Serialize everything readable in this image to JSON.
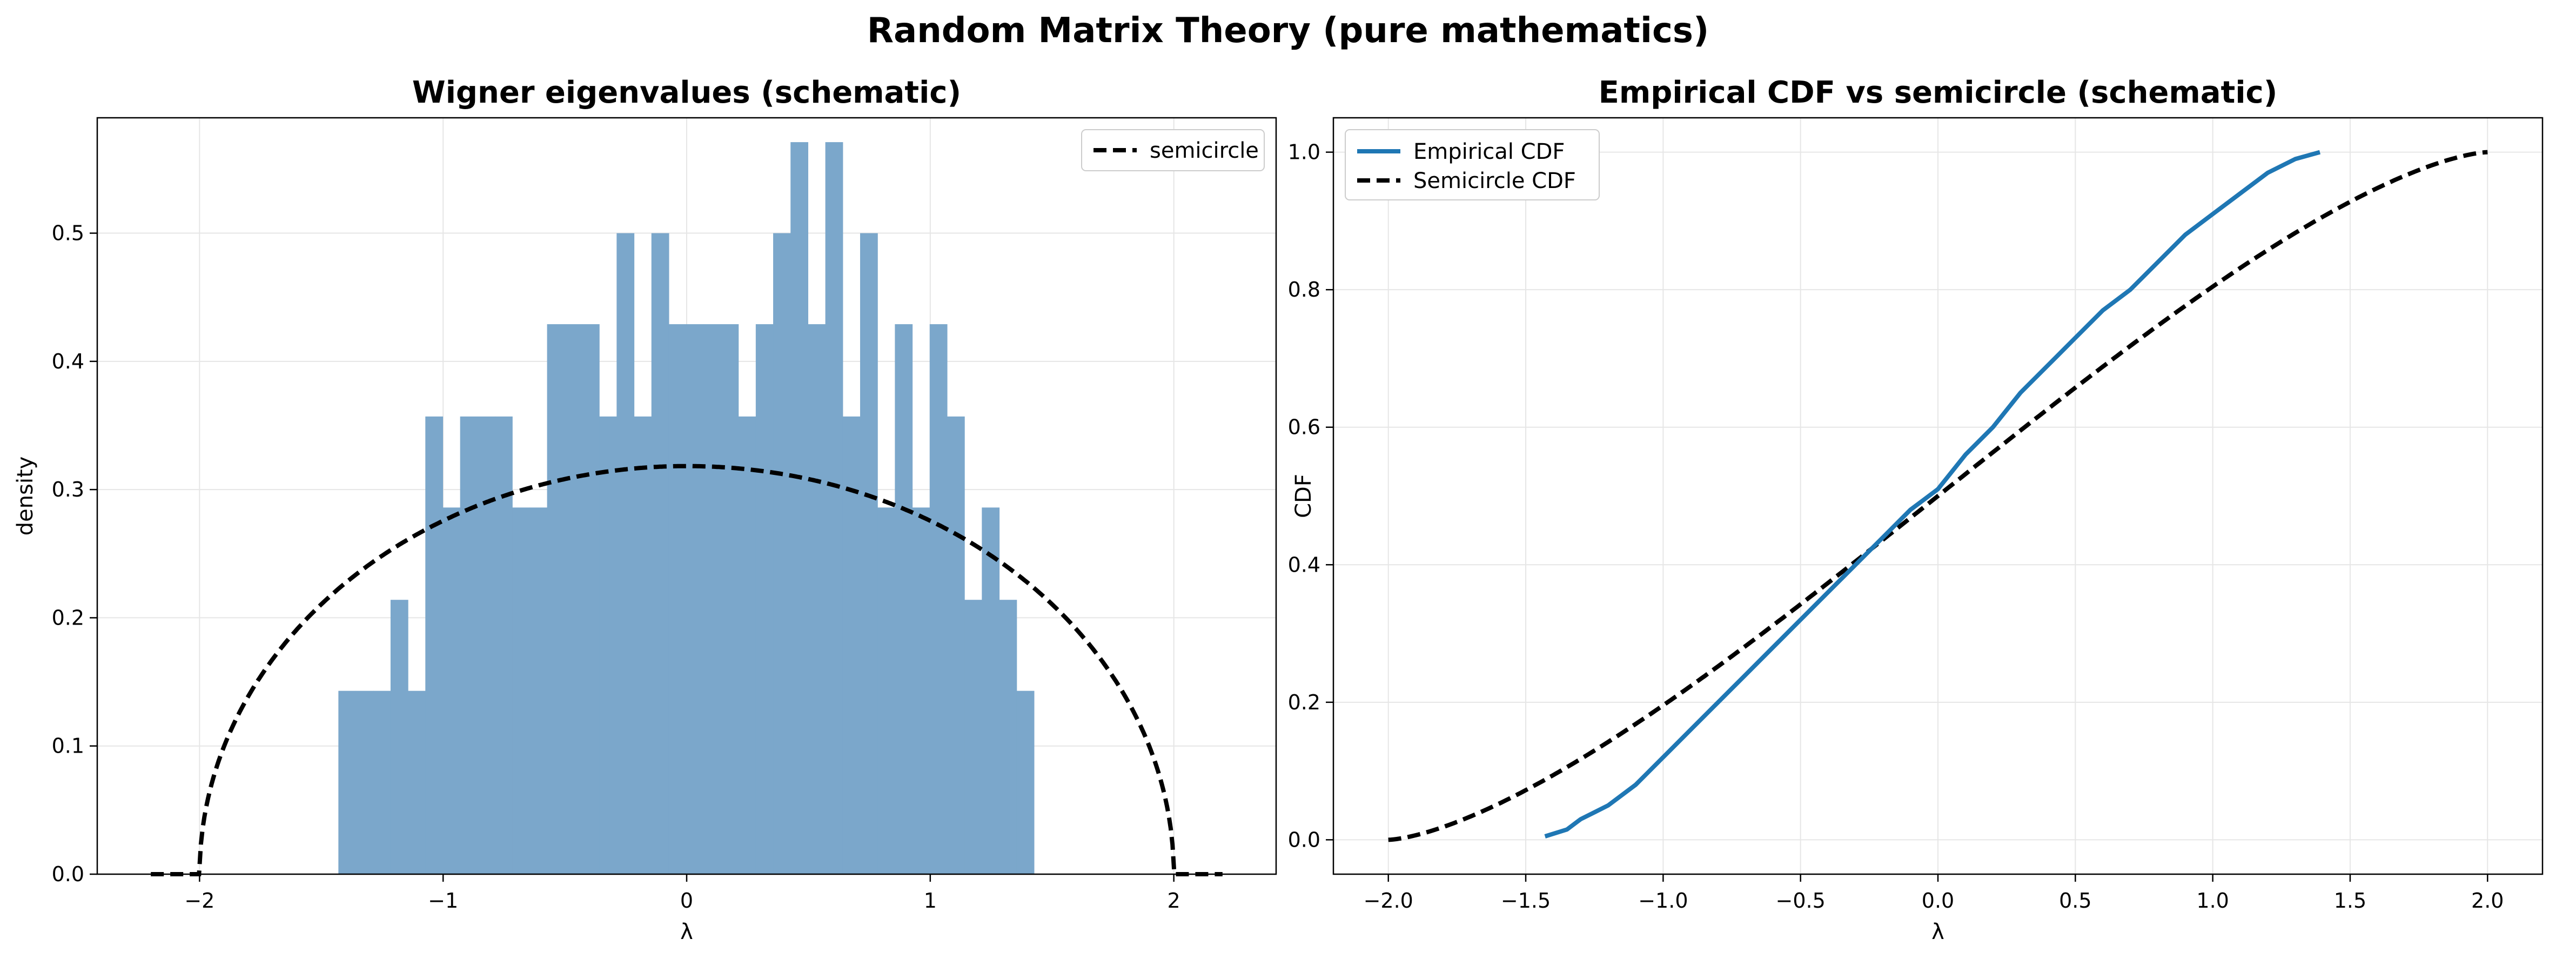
{
  "figure": {
    "suptitle": "Random Matrix Theory (pure mathematics)"
  },
  "colors": {
    "hist_fill": "#7BA7CB",
    "empirical_line": "#1f77b4",
    "semicircle_line": "#000000",
    "grid": "#e6e6e6"
  },
  "chart_data": [
    {
      "type": "bar",
      "title": "Wigner eigenvalues (schematic)",
      "xlabel": "λ",
      "ylabel": "density",
      "xlim": [
        -2.42,
        2.42
      ],
      "ylim": [
        0,
        0.59
      ],
      "xticks": [
        -2,
        -1,
        0,
        1,
        2
      ],
      "xtick_labels": [
        "−2",
        "−1",
        "0",
        "1",
        "2"
      ],
      "yticks": [
        0.0,
        0.1,
        0.2,
        0.3,
        0.4,
        0.5
      ],
      "ytick_labels": [
        "0.0",
        "0.1",
        "0.2",
        "0.3",
        "0.4",
        "0.5"
      ],
      "grid": true,
      "legend": {
        "position": "top-right",
        "entries": [
          "semicircle"
        ]
      },
      "bin_start": -1.43,
      "bin_width": 0.0714,
      "values": [
        0.143,
        0.143,
        0.143,
        0.214,
        0.143,
        0.357,
        0.286,
        0.357,
        0.357,
        0.357,
        0.286,
        0.286,
        0.429,
        0.429,
        0.429,
        0.357,
        0.5,
        0.357,
        0.5,
        0.429,
        0.429,
        0.429,
        0.429,
        0.357,
        0.429,
        0.5,
        0.571,
        0.429,
        0.571,
        0.357,
        0.5,
        0.286,
        0.429,
        0.286,
        0.429,
        0.357,
        0.214,
        0.286,
        0.214,
        0.143
      ],
      "series": [
        {
          "name": "semicircle",
          "type": "line",
          "style": "dashed",
          "function": "semicircle_density",
          "radius": 2
        }
      ]
    },
    {
      "type": "line",
      "title": "Empirical CDF vs semicircle (schematic)",
      "xlabel": "λ",
      "ylabel": "CDF",
      "xlim": [
        -2.2,
        2.2
      ],
      "ylim": [
        -0.05,
        1.05
      ],
      "xticks": [
        -2.0,
        -1.5,
        -1.0,
        -0.5,
        0.0,
        0.5,
        1.0,
        1.5,
        2.0
      ],
      "xtick_labels": [
        "−2.0",
        "−1.5",
        "−1.0",
        "−0.5",
        "0.0",
        "0.5",
        "1.0",
        "1.5",
        "2.0"
      ],
      "yticks": [
        0.0,
        0.2,
        0.4,
        0.6,
        0.8,
        1.0
      ],
      "ytick_labels": [
        "0.0",
        "0.2",
        "0.4",
        "0.6",
        "0.8",
        "1.0"
      ],
      "grid": true,
      "legend": {
        "position": "top-left",
        "entries": [
          "Empirical CDF",
          "Semicircle CDF"
        ]
      },
      "series": [
        {
          "name": "Empirical CDF",
          "type": "line",
          "style": "solid",
          "x": [
            -1.43,
            -1.35,
            -1.3,
            -1.25,
            -1.2,
            -1.1,
            -1.05,
            -1.0,
            -0.9,
            -0.8,
            -0.7,
            -0.6,
            -0.5,
            -0.4,
            -0.3,
            -0.2,
            -0.1,
            0.0,
            0.1,
            0.2,
            0.3,
            0.4,
            0.5,
            0.6,
            0.7,
            0.8,
            0.9,
            1.0,
            1.1,
            1.2,
            1.3,
            1.39
          ],
          "y": [
            0.005,
            0.015,
            0.03,
            0.04,
            0.05,
            0.08,
            0.1,
            0.12,
            0.16,
            0.2,
            0.24,
            0.28,
            0.32,
            0.36,
            0.4,
            0.44,
            0.48,
            0.51,
            0.56,
            0.6,
            0.65,
            0.69,
            0.73,
            0.77,
            0.8,
            0.84,
            0.88,
            0.91,
            0.94,
            0.97,
            0.99,
            1.0
          ]
        },
        {
          "name": "Semicircle CDF",
          "type": "line",
          "style": "dashed",
          "function": "semicircle_cdf",
          "radius": 2
        }
      ]
    }
  ]
}
